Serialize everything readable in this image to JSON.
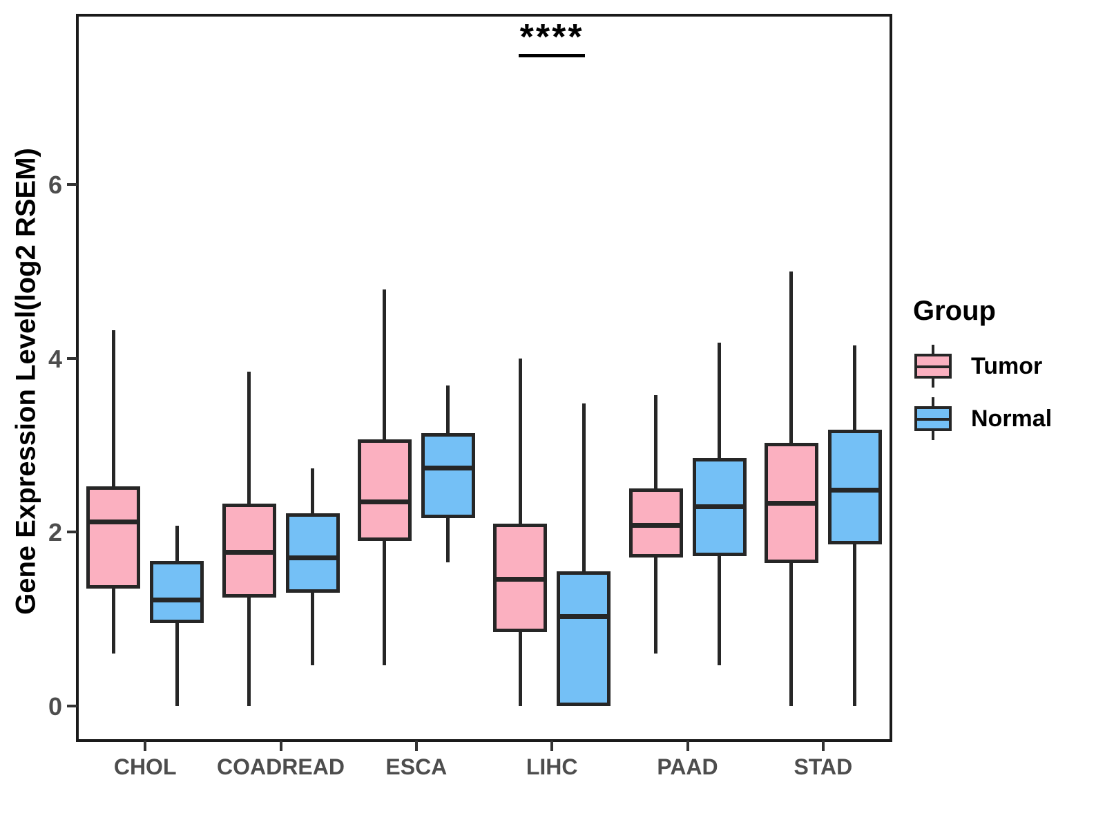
{
  "chart_data": {
    "type": "boxplot",
    "title": "",
    "ylabel": "Gene Expression Level(log2 RSEM)",
    "xlabel": "",
    "categories": [
      "CHOL",
      "COADREAD",
      "ESCA",
      "LIHC",
      "PAAD",
      "STAD"
    ],
    "ylim": [
      -0.4,
      7.95
    ],
    "yticks": [
      0,
      2,
      4,
      6
    ],
    "grid": false,
    "legend_title": "Group",
    "legend_position": "right",
    "series": [
      {
        "name": "Tumor",
        "color": "#FBB0C0",
        "boxes": [
          {
            "category": "CHOL",
            "min": 0.6,
            "q1": 1.35,
            "median": 2.12,
            "q3": 2.53,
            "max": 4.32
          },
          {
            "category": "COADREAD",
            "min": 0.0,
            "q1": 1.25,
            "median": 1.77,
            "q3": 2.33,
            "max": 3.85
          },
          {
            "category": "ESCA",
            "min": 0.47,
            "q1": 1.9,
            "median": 2.35,
            "q3": 3.07,
            "max": 4.79
          },
          {
            "category": "LIHC",
            "min": 0.0,
            "q1": 0.85,
            "median": 1.46,
            "q3": 2.1,
            "max": 4.0
          },
          {
            "category": "PAAD",
            "min": 0.6,
            "q1": 1.71,
            "median": 2.08,
            "q3": 2.5,
            "max": 3.58
          },
          {
            "category": "STAD",
            "min": 0.0,
            "q1": 1.64,
            "median": 2.33,
            "q3": 3.03,
            "max": 5.0
          }
        ]
      },
      {
        "name": "Normal",
        "color": "#74C0F6",
        "boxes": [
          {
            "category": "CHOL",
            "min": 0.0,
            "q1": 0.95,
            "median": 1.22,
            "q3": 1.67,
            "max": 2.07
          },
          {
            "category": "COADREAD",
            "min": 0.47,
            "q1": 1.3,
            "median": 1.7,
            "q3": 2.22,
            "max": 2.73
          },
          {
            "category": "ESCA",
            "min": 1.65,
            "q1": 2.16,
            "median": 2.74,
            "q3": 3.14,
            "max": 3.69
          },
          {
            "category": "LIHC",
            "min": 0.0,
            "q1": 0.0,
            "median": 1.03,
            "q3": 1.55,
            "max": 3.48
          },
          {
            "category": "PAAD",
            "min": 0.47,
            "q1": 1.72,
            "median": 2.29,
            "q3": 2.85,
            "max": 4.18
          },
          {
            "category": "STAD",
            "min": 0.0,
            "q1": 1.86,
            "median": 2.48,
            "q3": 3.18,
            "max": 4.15
          }
        ]
      }
    ],
    "annotations": [
      {
        "text": "****",
        "category": "LIHC",
        "y": 7.5,
        "underline": true
      }
    ],
    "style": {
      "stroke_color": "#262626",
      "panel_border_color": "#1A1A1A",
      "tick_label_color": "#4D4D4D",
      "axis_title_color": "#000000",
      "background": "#FFFFFF"
    }
  }
}
